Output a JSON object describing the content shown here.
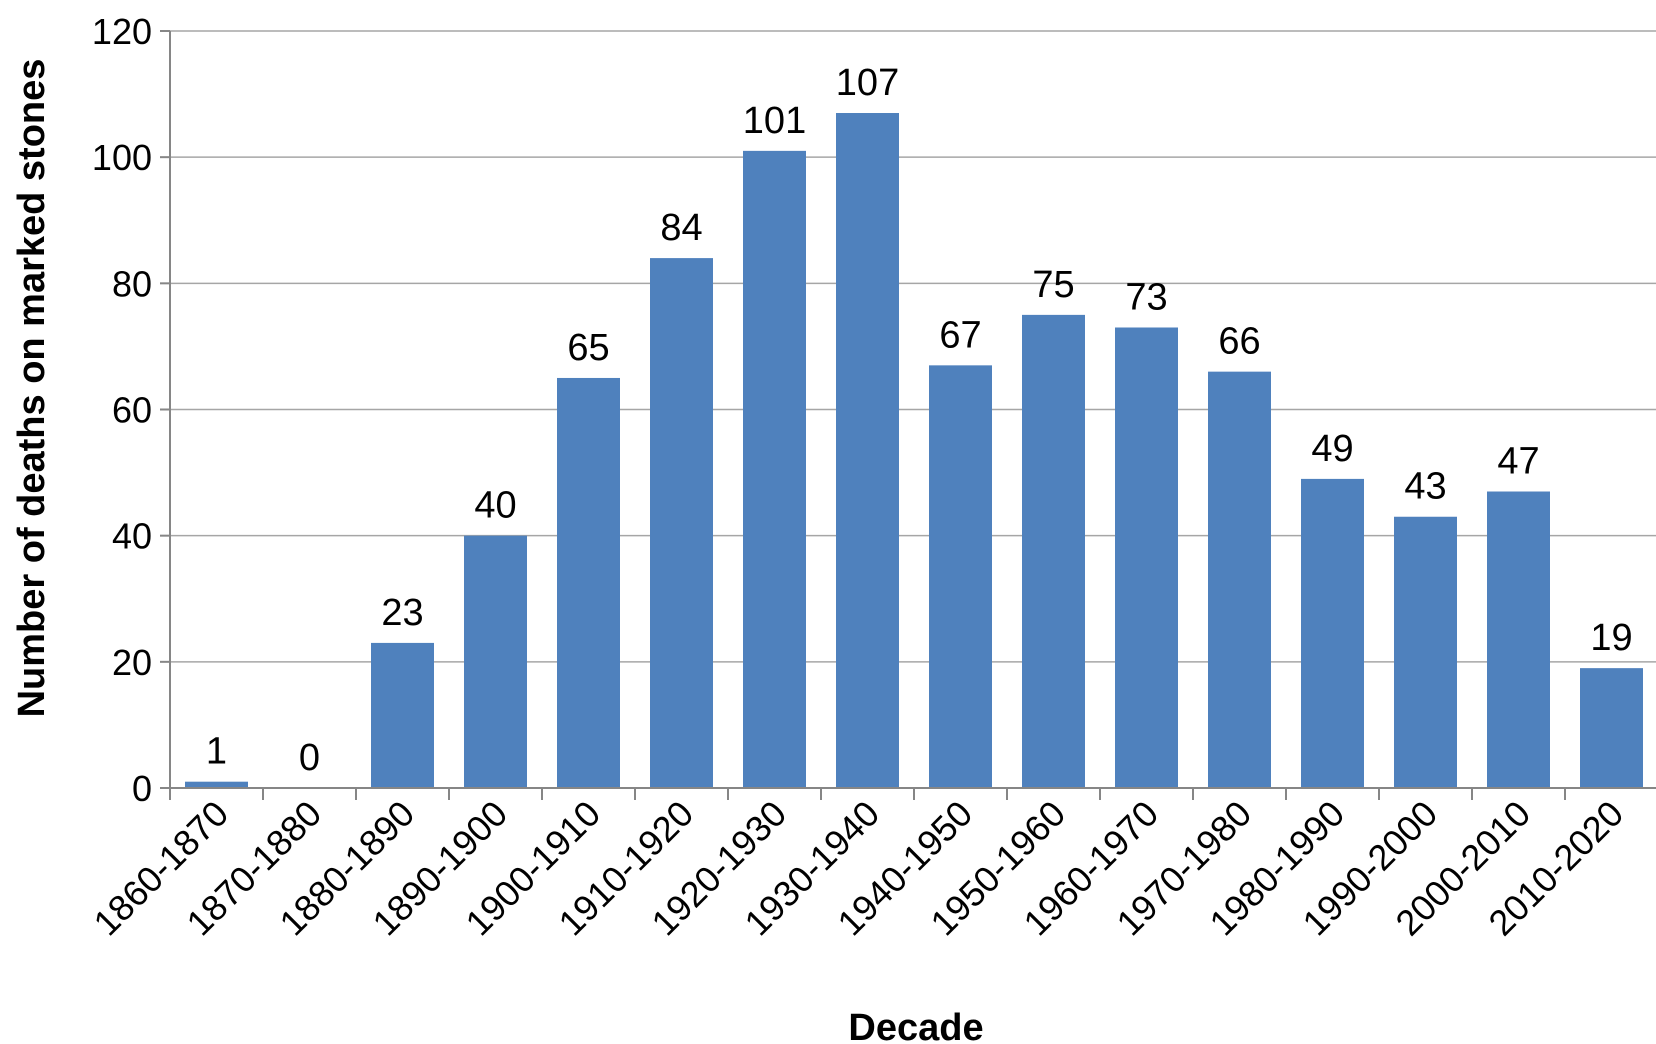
{
  "chart_data": {
    "type": "bar",
    "title": "",
    "xlabel": "Decade",
    "ylabel": "Number of deaths on marked stones",
    "categories": [
      "1860-1870",
      "1870-1880",
      "1880-1890",
      "1890-1900",
      "1900-1910",
      "1910-1920",
      "1920-1930",
      "1930-1940",
      "1940-1950",
      "1950-1960",
      "1960-1970",
      "1970-1980",
      "1980-1990",
      "1990-2000",
      "2000-2010",
      "2010-2020"
    ],
    "values": [
      1,
      0,
      23,
      40,
      65,
      84,
      101,
      107,
      67,
      75,
      73,
      66,
      49,
      43,
      47,
      19
    ],
    "ylim": [
      0,
      120
    ],
    "yticks": [
      0,
      20,
      40,
      60,
      80,
      100,
      120
    ],
    "grid": true,
    "legend": "none",
    "data_labels": true,
    "bar_color": "#4f81bd"
  }
}
